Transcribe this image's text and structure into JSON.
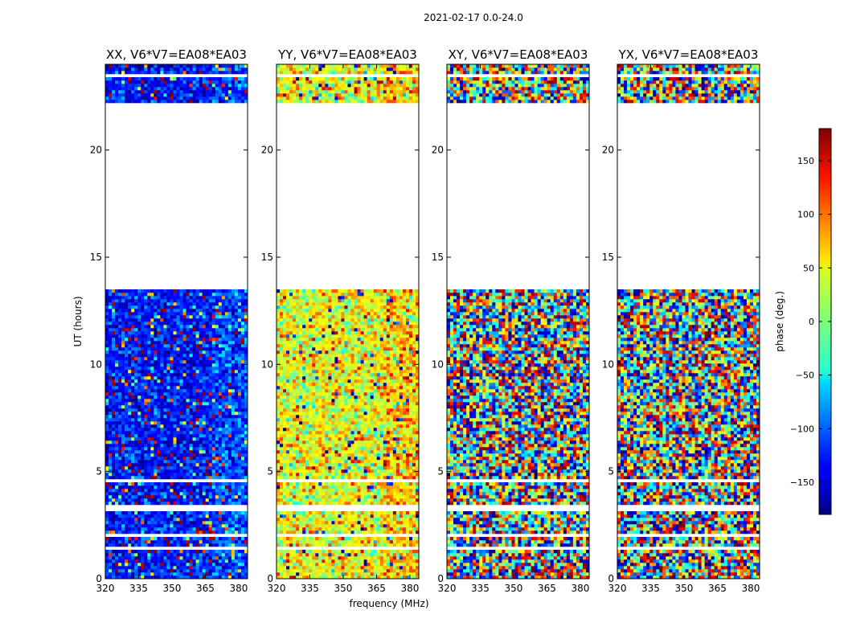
{
  "chart_data": {
    "type": "heatmap",
    "title": "2021-02-17 0.0-24.0",
    "xlabel": "frequency (MHz)",
    "ylabel": "UT (hours)",
    "colorbar_label": "phase (deg.)",
    "xlim": [
      320,
      384
    ],
    "ylim": [
      0,
      24
    ],
    "clim": [
      -180,
      180
    ],
    "xticks": [
      320,
      335,
      350,
      365,
      380
    ],
    "yticks": [
      0,
      5,
      10,
      15,
      20
    ],
    "colorbar_ticks": [
      -150,
      -100,
      -50,
      0,
      50,
      100,
      150
    ],
    "colorbar_tick_labels": [
      "−150",
      "−100",
      "−50",
      "0",
      "50",
      "100",
      "150"
    ],
    "colormap": "jet",
    "data_gaps_hours": [
      [
        1.3,
        1.5
      ],
      [
        2.0,
        2.1
      ],
      [
        3.2,
        3.4
      ],
      [
        4.5,
        4.6
      ],
      [
        13.5,
        22.2
      ],
      [
        23.4,
        23.5
      ]
    ],
    "panels": [
      {
        "title": "XX, V6*V7=EA08*EA03",
        "dominant_phase_deg": -130,
        "noise_deg": 35
      },
      {
        "title": "YY, V6*V7=EA08*EA03",
        "dominant_phase_deg": 40,
        "noise_deg": 45
      },
      {
        "title": "XY, V6*V7=EA08*EA03",
        "dominant_phase_deg": 0,
        "noise_deg": 180
      },
      {
        "title": "YX, V6*V7=EA08*EA03",
        "dominant_phase_deg": 0,
        "noise_deg": 180
      }
    ]
  }
}
